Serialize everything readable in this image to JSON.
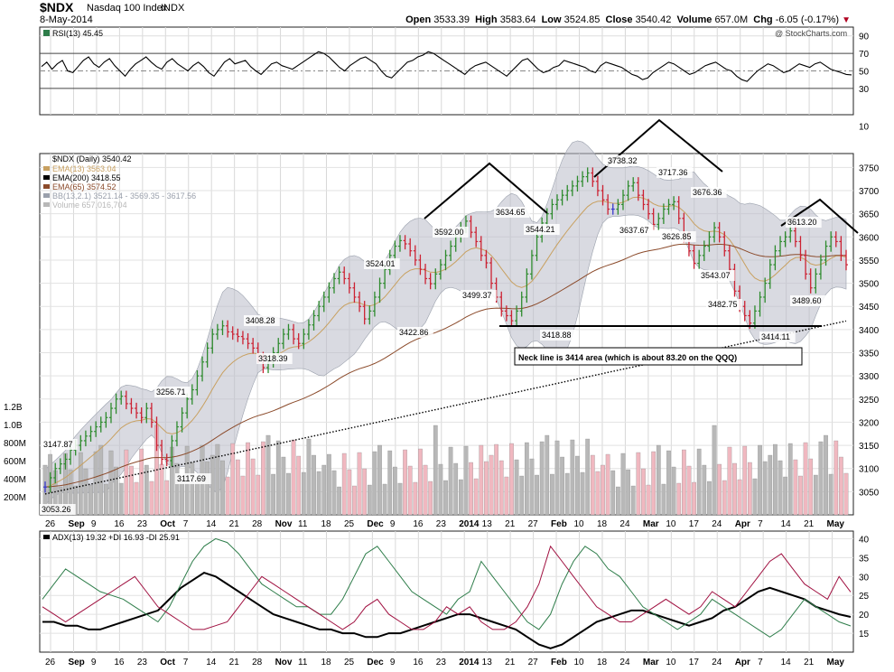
{
  "header": {
    "symbol": "$NDX",
    "name": "Nasdaq 100 Index",
    "exchange": "INDX",
    "date": "8-May-2014",
    "open_label": "Open",
    "open": "3533.39",
    "high_label": "High",
    "high": "3583.64",
    "low_label": "Low",
    "low": "3524.85",
    "close_label": "Close",
    "close": "3540.42",
    "volume_label": "Volume",
    "volume": "657.0M",
    "chg_label": "Chg",
    "chg": "-6.05 (-0.17%)",
    "watermark": "@ StockCharts.com"
  },
  "colors": {
    "up": "#2e8b2e",
    "down": "#cc2233",
    "flat": "#3a3acc",
    "bb_fill": "#b9bcc8",
    "ema13": "#c8a060",
    "ema65": "#8b4a2a",
    "vol_up": "#b8b8b8",
    "vol_down": "#f0b8c0",
    "adx": "#000000",
    "plus_di": "#2e7d4a",
    "minus_di": "#a01040"
  },
  "chart_data": [
    {
      "type": "line",
      "title": "RSI(13) 45.45",
      "ylim": [
        0,
        100
      ],
      "y_ticks": [
        30,
        50,
        70,
        90
      ],
      "overbought": 70,
      "oversold": 30,
      "values": [
        55,
        60,
        52,
        58,
        62,
        50,
        48,
        55,
        62,
        66,
        58,
        54,
        60,
        64,
        56,
        50,
        44,
        52,
        58,
        62,
        66,
        60,
        55,
        52,
        60,
        64,
        58,
        54,
        50,
        56,
        60,
        55,
        48,
        44,
        52,
        60,
        64,
        58,
        60,
        62,
        55,
        50,
        46,
        52,
        58,
        60,
        56,
        54,
        52,
        56,
        60,
        64,
        68,
        72,
        70,
        66,
        60,
        54,
        50,
        56,
        60,
        64,
        66,
        62,
        58,
        50,
        44,
        42,
        48,
        54,
        60,
        62,
        66,
        68,
        72,
        70,
        66,
        62,
        58,
        54,
        50,
        46,
        52,
        56,
        58,
        60,
        56,
        52,
        48,
        44,
        50,
        56,
        62,
        64,
        58,
        52,
        48,
        50,
        54,
        56,
        62,
        60,
        58,
        56,
        54,
        50,
        48,
        56,
        60,
        58,
        56,
        54,
        50,
        46,
        44,
        40,
        42,
        48,
        52,
        56,
        60,
        58,
        54,
        50,
        46,
        48,
        52,
        56,
        58,
        60,
        56,
        52,
        50,
        44,
        40,
        38,
        44,
        50,
        54,
        58,
        56,
        52,
        48,
        50,
        54,
        58,
        56,
        54,
        58,
        60,
        56,
        52,
        50,
        48,
        46,
        45.45
      ]
    },
    {
      "type": "bar",
      "title": "$NDX (Daily) 3540.42",
      "ylim": [
        3000,
        3800
      ],
      "y_ticks": [
        3050,
        3100,
        3150,
        3200,
        3250,
        3300,
        3350,
        3400,
        3450,
        3500,
        3550,
        3600,
        3650,
        3700,
        3750
      ],
      "legend": [
        {
          "name": "EMA(13) 3563.04",
          "color": "#c8a060"
        },
        {
          "name": "EMA(200) 3418.55",
          "color": "#000000"
        },
        {
          "name": "EMA(65) 3574.52",
          "color": "#8b4a2a"
        },
        {
          "name": "BB(13,2.1) 3521.14 - 3569.35 - 3617.56",
          "color": "#9aa0ac"
        },
        {
          "name": "Volume 657,016,704",
          "color": "#b8b8b8"
        }
      ],
      "x_labels": [
        "26",
        "Sep",
        "9",
        "16",
        "23",
        "Oct",
        "7",
        "14",
        "21",
        "28",
        "Nov",
        "11",
        "18",
        "25",
        "Dec",
        "9",
        "16",
        "23",
        "2014",
        "13",
        "21",
        "27",
        "Feb",
        "10",
        "18",
        "24",
        "Mar",
        "10",
        "17",
        "24",
        "Apr",
        "7",
        "14",
        "21",
        "May"
      ],
      "closes": [
        3060,
        3080,
        3100,
        3110,
        3120,
        3140,
        3150,
        3160,
        3170,
        3180,
        3190,
        3200,
        3210,
        3230,
        3250,
        3256,
        3240,
        3230,
        3220,
        3210,
        3230,
        3200,
        3150,
        3120,
        3117,
        3160,
        3190,
        3220,
        3250,
        3270,
        3300,
        3330,
        3360,
        3390,
        3400,
        3408,
        3395,
        3390,
        3385,
        3380,
        3370,
        3360,
        3340,
        3318,
        3330,
        3350,
        3370,
        3390,
        3400,
        3380,
        3370,
        3390,
        3410,
        3430,
        3450,
        3470,
        3490,
        3510,
        3524,
        3510,
        3490,
        3470,
        3450,
        3423,
        3440,
        3470,
        3500,
        3530,
        3560,
        3580,
        3592,
        3585,
        3570,
        3550,
        3530,
        3510,
        3499,
        3520,
        3540,
        3560,
        3580,
        3600,
        3620,
        3634,
        3610,
        3590,
        3560,
        3544,
        3500,
        3470,
        3440,
        3430,
        3419,
        3440,
        3470,
        3520,
        3560,
        3600,
        3630,
        3650,
        3670,
        3680,
        3690,
        3700,
        3710,
        3720,
        3730,
        3738,
        3720,
        3700,
        3680,
        3660,
        3660,
        3670,
        3690,
        3710,
        3717,
        3690,
        3670,
        3650,
        3627,
        3640,
        3660,
        3670,
        3676,
        3640,
        3600,
        3570,
        3543,
        3560,
        3580,
        3600,
        3620,
        3600,
        3570,
        3530,
        3483,
        3450,
        3430,
        3414,
        3440,
        3470,
        3500,
        3540,
        3570,
        3590,
        3600,
        3613,
        3590,
        3560,
        3520,
        3490,
        3520,
        3550,
        3580,
        3600,
        3590,
        3560,
        3540
      ],
      "annotations": [
        {
          "text": "3147.87"
        },
        {
          "text": "3053.26"
        },
        {
          "text": "3256.71"
        },
        {
          "text": "3117.69"
        },
        {
          "text": "3408.28"
        },
        {
          "text": "3318.39"
        },
        {
          "text": "3524.01"
        },
        {
          "text": "3422.86"
        },
        {
          "text": "3592.00"
        },
        {
          "text": "3499.37"
        },
        {
          "text": "3634.65"
        },
        {
          "text": "3544.21"
        },
        {
          "text": "3418.88"
        },
        {
          "text": "3738.32"
        },
        {
          "text": "3637.67"
        },
        {
          "text": "3717.36"
        },
        {
          "text": "3626.85"
        },
        {
          "text": "3676.36"
        },
        {
          "text": "3543.07"
        },
        {
          "text": "3482.75"
        },
        {
          "text": "3414.11"
        },
        {
          "text": "3613.20"
        },
        {
          "text": "3489.60"
        }
      ],
      "note": "Neck line is 3414 area (which is about 83.20 on the QQQ)",
      "volume_ticks": [
        "200M",
        "400M",
        "600M",
        "800M",
        "1.0B",
        "1.2B"
      ]
    },
    {
      "type": "line",
      "title": "ADX(13) 19.32 +DI 16.93 -DI 25.91",
      "ylim": [
        10,
        42
      ],
      "y_ticks": [
        15,
        20,
        25,
        30,
        35,
        40
      ],
      "x_labels": [
        "26",
        "Sep",
        "9",
        "16",
        "23",
        "Oct",
        "7",
        "14",
        "21",
        "28",
        "Nov",
        "11",
        "18",
        "25",
        "Dec",
        "9",
        "16",
        "23",
        "2014",
        "13",
        "21",
        "27",
        "Feb",
        "10",
        "18",
        "24",
        "Mar",
        "10",
        "17",
        "24",
        "Apr",
        "7",
        "14",
        "21",
        "May"
      ],
      "series": [
        {
          "name": "ADX(13) 19.32",
          "values": [
            18,
            18,
            17,
            17,
            16,
            16,
            17,
            18,
            19,
            20,
            21,
            24,
            27,
            29,
            31,
            30,
            28,
            26,
            24,
            22,
            20,
            19,
            18,
            17,
            16,
            16,
            15,
            15,
            14,
            14,
            15,
            15,
            16,
            17,
            18,
            19,
            20,
            20,
            19,
            18,
            17,
            16,
            14,
            12,
            11,
            12,
            14,
            16,
            18,
            19,
            20,
            21,
            21,
            20,
            19,
            18,
            17,
            18,
            19,
            21,
            22,
            24,
            26,
            27,
            26,
            25,
            24,
            22,
            21,
            20,
            19.32
          ]
        },
        {
          "name": "+DI 16.93",
          "values": [
            24,
            28,
            32,
            30,
            28,
            26,
            25,
            24,
            22,
            20,
            18,
            22,
            28,
            34,
            38,
            40,
            39,
            36,
            32,
            28,
            26,
            24,
            22,
            22,
            20,
            20,
            24,
            30,
            36,
            38,
            34,
            30,
            26,
            24,
            22,
            20,
            24,
            26,
            34,
            30,
            26,
            22,
            18,
            16,
            20,
            28,
            34,
            38,
            36,
            32,
            30,
            26,
            22,
            20,
            18,
            16,
            18,
            20,
            24,
            22,
            20,
            18,
            16,
            14,
            16,
            20,
            24,
            22,
            20,
            18,
            16.93
          ]
        },
        {
          "name": "-DI 25.91",
          "values": [
            22,
            20,
            18,
            20,
            22,
            24,
            26,
            28,
            30,
            26,
            22,
            20,
            18,
            16,
            16,
            17,
            18,
            22,
            26,
            30,
            28,
            26,
            24,
            22,
            20,
            18,
            16,
            18,
            22,
            24,
            20,
            18,
            16,
            16,
            18,
            22,
            20,
            22,
            18,
            16,
            16,
            18,
            22,
            28,
            38,
            34,
            30,
            26,
            22,
            20,
            18,
            18,
            20,
            22,
            24,
            22,
            20,
            22,
            26,
            24,
            22,
            26,
            30,
            34,
            36,
            32,
            28,
            26,
            24,
            30,
            25.91
          ]
        }
      ]
    }
  ]
}
